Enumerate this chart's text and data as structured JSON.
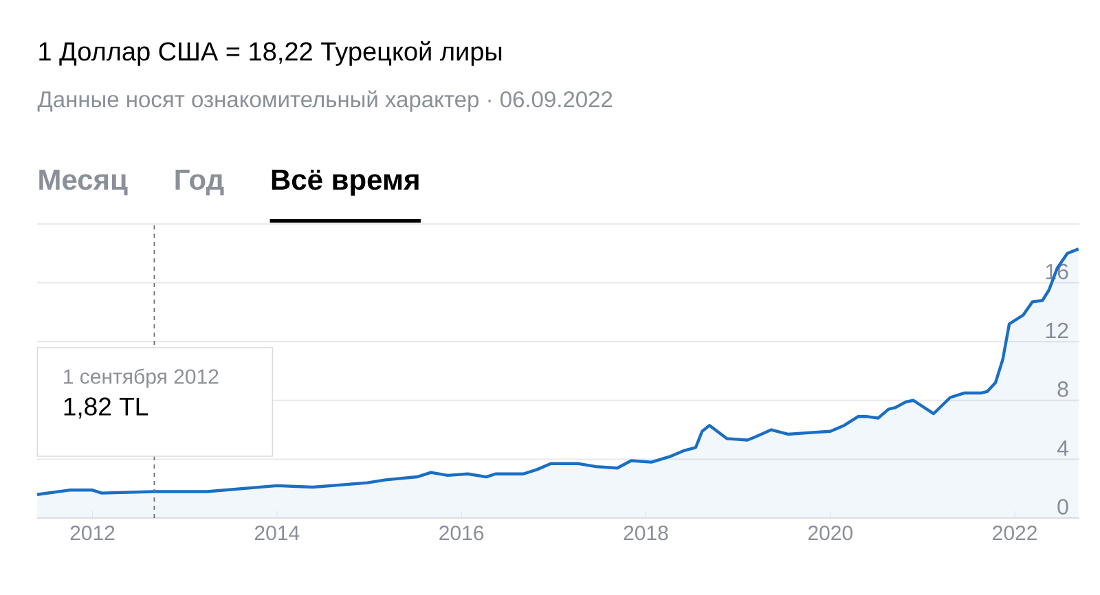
{
  "chart_data": {
    "type": "area",
    "title": "1 Доллар США = 18,22 Турецкой лиры",
    "subtitle": "Данные носят ознакомительный характер · 06.09.2022",
    "annotations": [
      "Месяц",
      "Год",
      "Всё время",
      "1 сентября 2012",
      "1,82 TL"
    ],
    "series": [
      {
        "color": "#1a6fc4",
        "x": [
          2011.4,
          2011.75,
          2012.0,
          2012.1,
          2012.67,
          2013.24,
          2014.0,
          2014.39,
          2014.98,
          2015.18,
          2015.52,
          2015.67,
          2015.85,
          2016.07,
          2016.27,
          2016.37,
          2016.67,
          2016.82,
          2016.97,
          2017.27,
          2017.46,
          2017.69,
          2017.84,
          2018.06,
          2018.27,
          2018.42,
          2018.54,
          2018.61,
          2018.69,
          2018.88,
          2019.1,
          2019.18,
          2019.36,
          2019.54,
          2019.76,
          2020.0,
          2020.15,
          2020.3,
          2020.4,
          2020.52,
          2020.63,
          2020.7,
          2020.82,
          2020.9,
          2021.12,
          2021.3,
          2021.45,
          2021.63,
          2021.7,
          2021.79,
          2021.87,
          2021.94,
          2022.09,
          2022.19,
          2022.3,
          2022.37,
          2022.46,
          2022.57,
          2022.69
        ],
        "values": [
          1.6,
          1.9,
          1.9,
          1.7,
          1.8,
          1.8,
          2.2,
          2.1,
          2.4,
          2.6,
          2.8,
          3.1,
          2.9,
          3.0,
          2.8,
          3.0,
          3.0,
          3.3,
          3.7,
          3.7,
          3.5,
          3.4,
          3.9,
          3.8,
          4.2,
          4.6,
          4.8,
          5.9,
          6.3,
          5.4,
          5.3,
          5.5,
          6.0,
          5.7,
          5.8,
          5.9,
          6.3,
          6.9,
          6.9,
          6.8,
          7.4,
          7.5,
          7.9,
          8.0,
          7.1,
          8.2,
          8.5,
          8.5,
          8.6,
          9.2,
          10.8,
          13.2,
          13.8,
          14.7,
          14.8,
          15.5,
          17.0,
          18.0,
          18.3
        ]
      }
    ],
    "xlim": [
      2011.4,
      2022.7
    ],
    "ylim": [
      0,
      20
    ],
    "xticks": [
      2012,
      2014,
      2016,
      2018,
      2020,
      2022
    ],
    "yticks": [
      0,
      4,
      8,
      12,
      16,
      {
        "value": 20,
        "label": null
      }
    ],
    "grid": "y",
    "ref_lines": [
      {
        "axis": "x",
        "value": 2012.67,
        "color": "#707070",
        "line_style": "dashed"
      }
    ]
  }
}
